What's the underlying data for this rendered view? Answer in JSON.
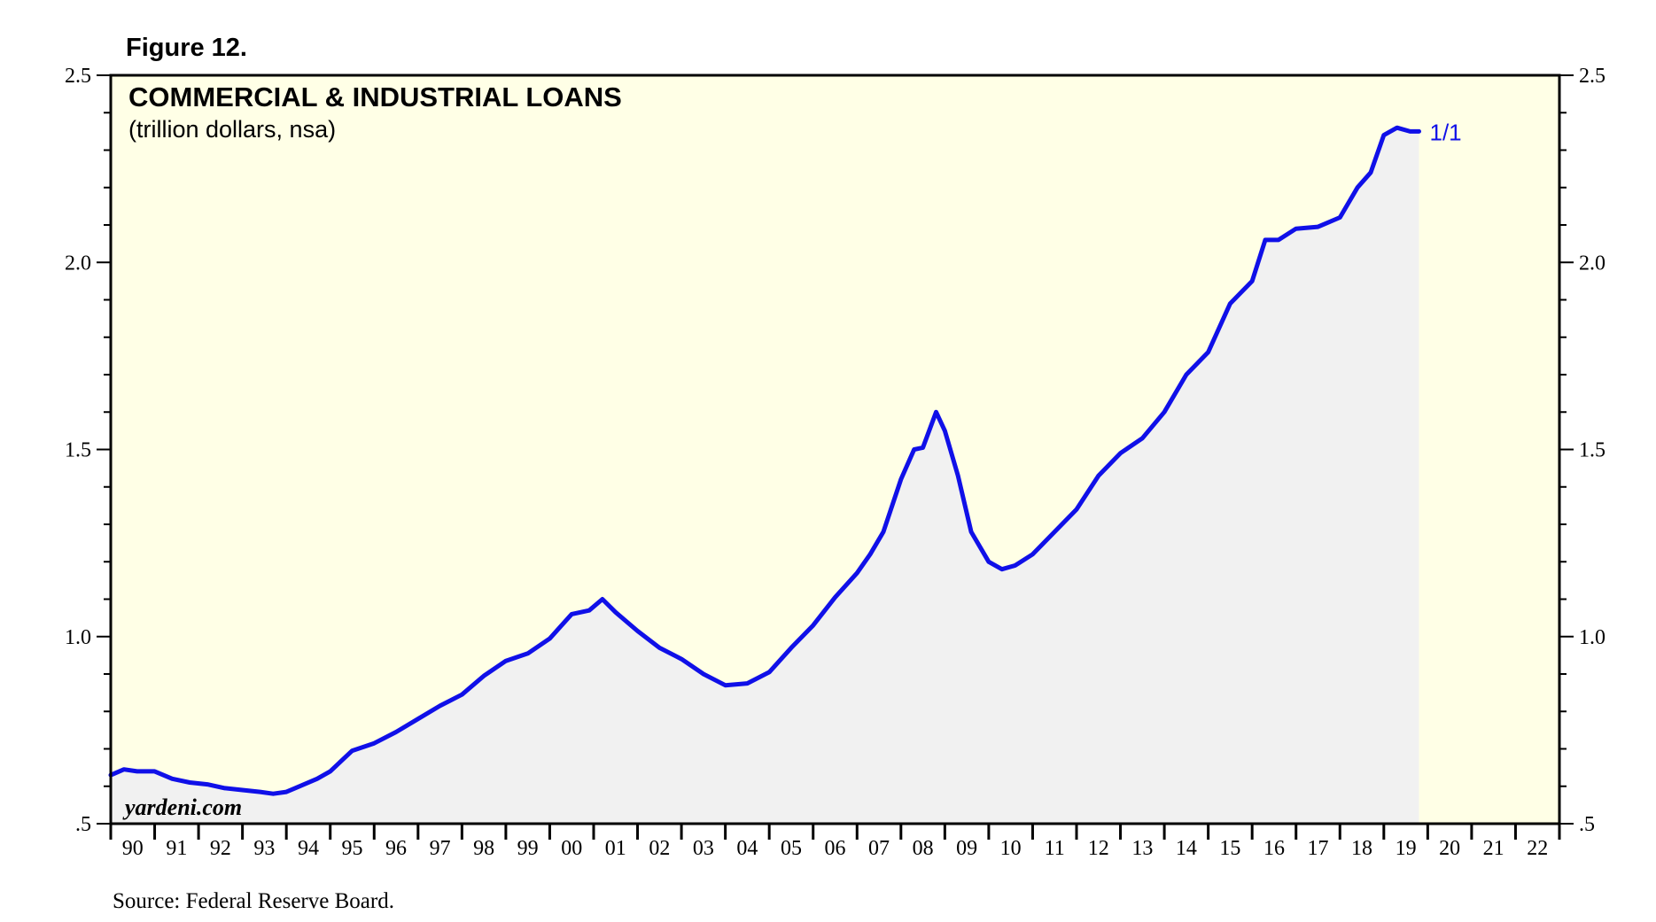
{
  "figure_label": "Figure 12.",
  "source": "Source: Federal Reserve Board.",
  "watermark": "yardeni.com",
  "colors": {
    "plot_background": "#ffffe6",
    "area_fill": "#f1f1f1",
    "line": "#1010e8",
    "frame": "#000000"
  },
  "chart_data": {
    "type": "area",
    "title": "COMMERCIAL & INDUSTRIAL LOANS",
    "subtitle": "(trillion dollars, nsa)",
    "last_value_label": "1/1",
    "ylim": [
      0.5,
      2.5
    ],
    "xlim": [
      1990.0,
      2023.0
    ],
    "y_ticks": [
      0.5,
      1.0,
      1.5,
      2.0,
      2.5
    ],
    "y_tick_labels": [
      ".5",
      "1.0",
      "1.5",
      "2.0",
      "2.5"
    ],
    "x_tick_labels": [
      "90",
      "91",
      "92",
      "93",
      "94",
      "95",
      "96",
      "97",
      "98",
      "99",
      "00",
      "01",
      "02",
      "03",
      "04",
      "05",
      "06",
      "07",
      "08",
      "09",
      "10",
      "11",
      "12",
      "13",
      "14",
      "15",
      "16",
      "17",
      "18",
      "19",
      "20",
      "21",
      "22"
    ],
    "grid": false,
    "series": [
      {
        "x": [
          1990.0,
          1990.3,
          1990.6,
          1991.0,
          1991.4,
          1991.8,
          1992.2,
          1992.6,
          1993.0,
          1993.4,
          1993.7,
          1994.0,
          1994.3,
          1994.7,
          1995.0,
          1995.5,
          1996.0,
          1996.5,
          1997.0,
          1997.5,
          1998.0,
          1998.5,
          1999.0,
          1999.5,
          2000.0,
          2000.5,
          2000.9,
          2001.2,
          2001.5,
          2002.0,
          2002.5,
          2003.0,
          2003.5,
          2004.0,
          2004.5,
          2005.0,
          2005.5,
          2006.0,
          2006.5,
          2007.0,
          2007.3,
          2007.6,
          2008.0,
          2008.3,
          2008.5,
          2008.8,
          2009.0,
          2009.3,
          2009.6,
          2010.0,
          2010.3,
          2010.6,
          2011.0,
          2011.5,
          2012.0,
          2012.5,
          2013.0,
          2013.5,
          2014.0,
          2014.5,
          2015.0,
          2015.5,
          2016.0,
          2016.3,
          2016.6,
          2017.0,
          2017.5,
          2018.0,
          2018.4,
          2018.7,
          2019.0,
          2019.3,
          2019.6,
          2019.8
        ],
        "y": [
          0.63,
          0.645,
          0.64,
          0.64,
          0.62,
          0.61,
          0.605,
          0.595,
          0.59,
          0.585,
          0.58,
          0.585,
          0.6,
          0.62,
          0.64,
          0.695,
          0.715,
          0.745,
          0.78,
          0.815,
          0.845,
          0.895,
          0.935,
          0.955,
          0.995,
          1.06,
          1.07,
          1.1,
          1.065,
          1.015,
          0.97,
          0.94,
          0.9,
          0.87,
          0.875,
          0.905,
          0.97,
          1.03,
          1.105,
          1.17,
          1.22,
          1.28,
          1.42,
          1.5,
          1.505,
          1.6,
          1.55,
          1.43,
          1.28,
          1.2,
          1.18,
          1.19,
          1.22,
          1.28,
          1.34,
          1.43,
          1.49,
          1.53,
          1.6,
          1.7,
          1.76,
          1.89,
          1.95,
          2.06,
          2.06,
          2.09,
          2.095,
          2.12,
          2.2,
          2.24,
          2.34,
          2.36,
          2.35,
          2.35
        ]
      }
    ]
  }
}
